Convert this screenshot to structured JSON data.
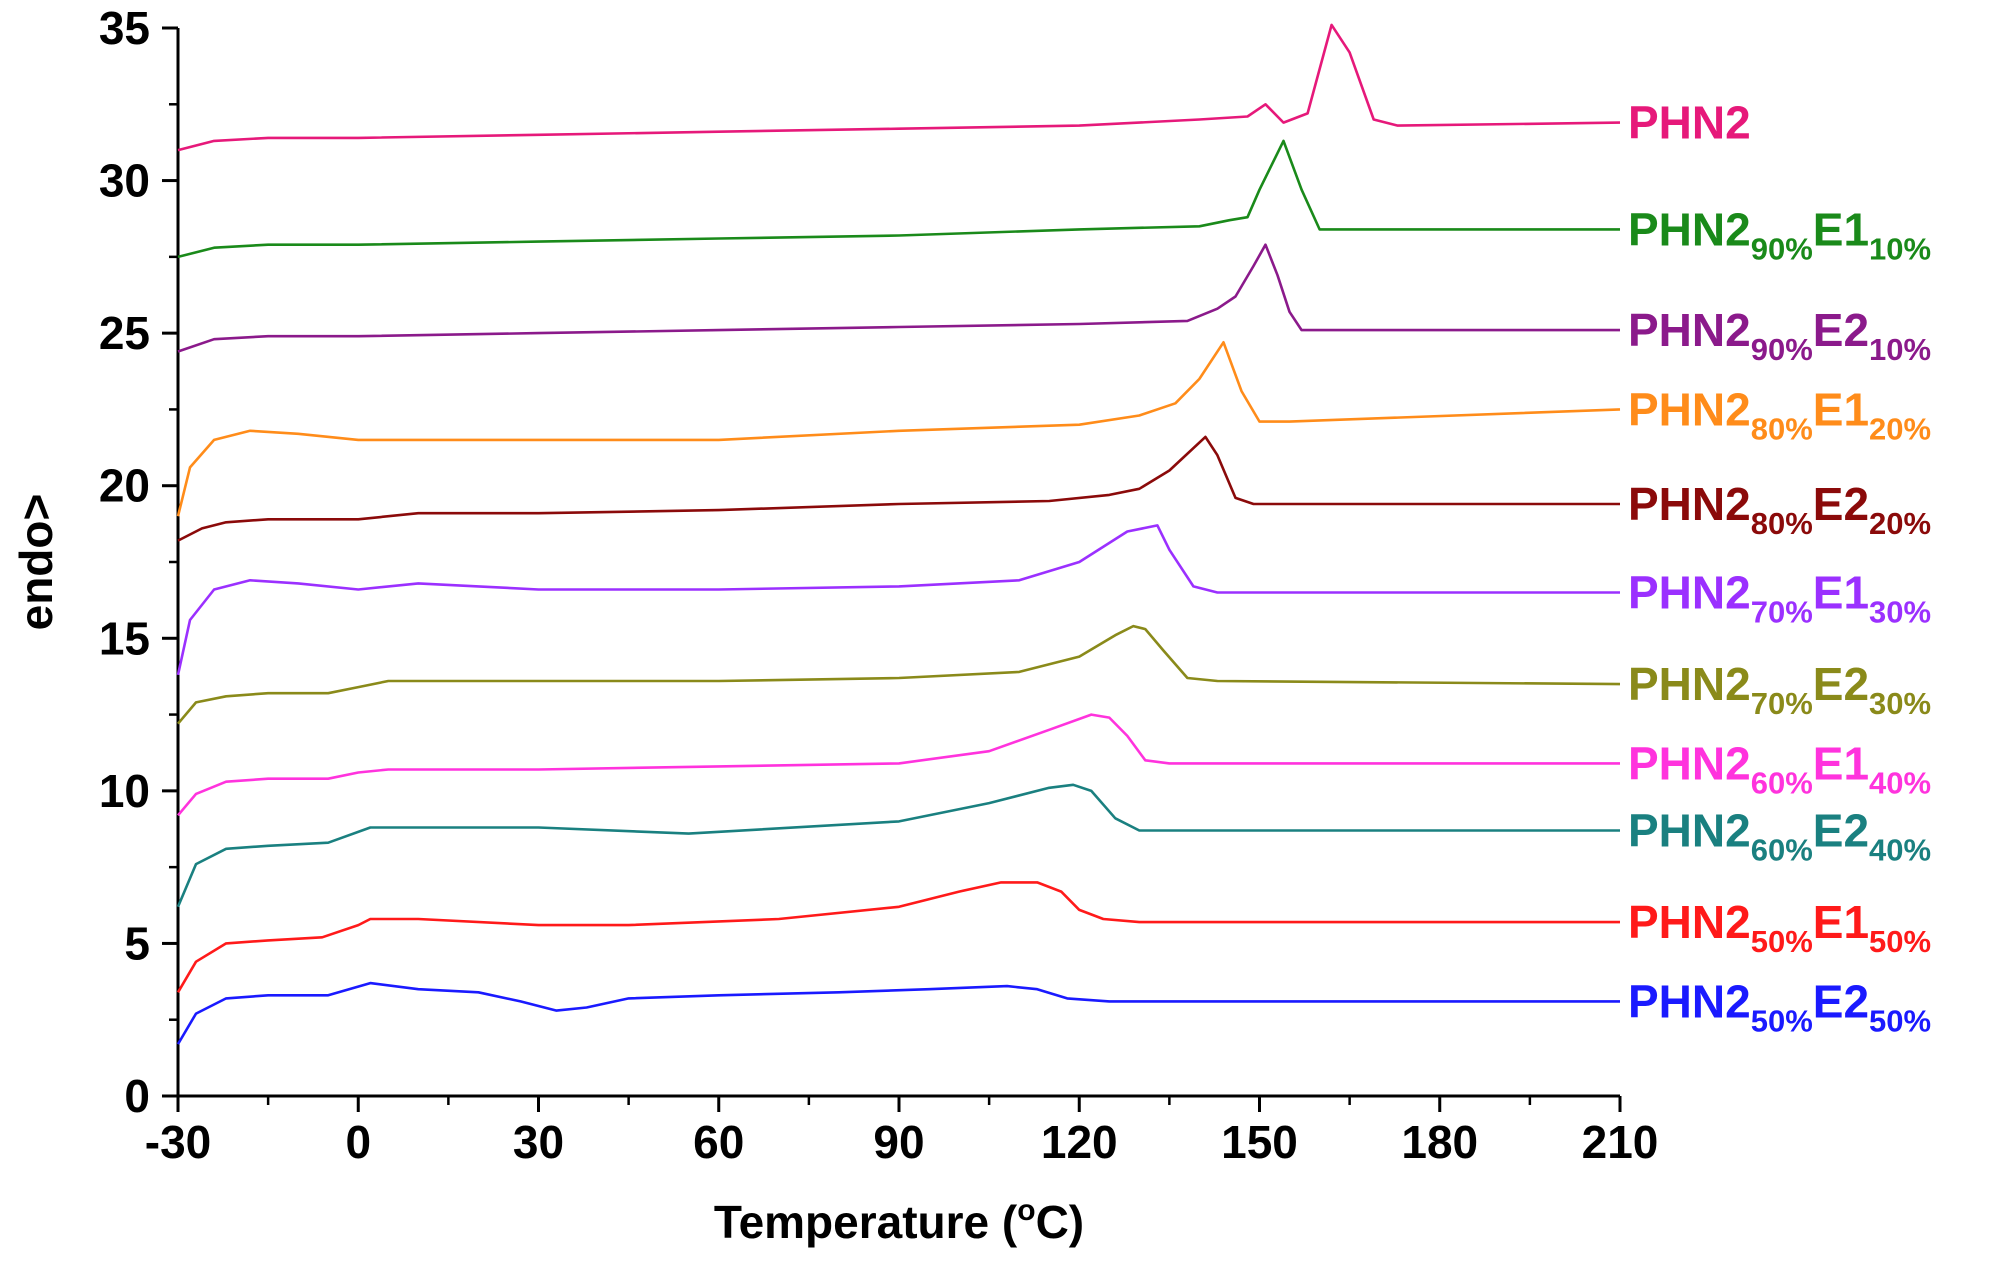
{
  "chart_data": {
    "type": "line",
    "title": "",
    "xlabel": "Temperature (",
    "xlabel_degree": "o",
    "xlabel_unit": "C)",
    "ylabel": "endo>",
    "xlim": [
      -30,
      210
    ],
    "ylim": [
      0,
      35
    ],
    "xticks": [
      -30,
      0,
      30,
      60,
      90,
      120,
      150,
      180,
      210
    ],
    "yticks": [
      0,
      5,
      10,
      15,
      20,
      25,
      30,
      35
    ],
    "grid": false,
    "series": [
      {
        "id": "phn2",
        "label": {
          "base": "PHN2",
          "parts": []
        },
        "color": "#e6197a",
        "x": [
          -30,
          -24,
          -15,
          0,
          30,
          60,
          90,
          120,
          140,
          148,
          151,
          154,
          158,
          162,
          165,
          169,
          173,
          210
        ],
        "y": [
          31.0,
          31.3,
          31.4,
          31.4,
          31.5,
          31.6,
          31.7,
          31.8,
          32.0,
          32.1,
          32.5,
          31.9,
          32.2,
          35.1,
          34.2,
          32.0,
          31.8,
          31.9
        ]
      },
      {
        "id": "phn2-90-e1-10",
        "label": {
          "base": "PHN2",
          "parts": [
            {
              "sub": "90%",
              "text": "E1"
            },
            {
              "sub": "10%",
              "text": ""
            }
          ]
        },
        "color": "#1a8a1a",
        "x": [
          -30,
          -24,
          -15,
          0,
          30,
          60,
          90,
          120,
          140,
          145,
          148,
          150,
          154,
          157,
          160,
          210
        ],
        "y": [
          27.5,
          27.8,
          27.9,
          27.9,
          28.0,
          28.1,
          28.2,
          28.4,
          28.5,
          28.7,
          28.8,
          29.7,
          31.3,
          29.7,
          28.4,
          28.4
        ]
      },
      {
        "id": "phn2-90-e2-10",
        "label": {
          "base": "PHN2",
          "parts": [
            {
              "sub": "90%",
              "text": "E2"
            },
            {
              "sub": "10%",
              "text": ""
            }
          ]
        },
        "color": "#8b1a8b",
        "x": [
          -30,
          -24,
          -15,
          0,
          30,
          60,
          90,
          120,
          138,
          143,
          146,
          149,
          151,
          153,
          155,
          157,
          160,
          210
        ],
        "y": [
          24.4,
          24.8,
          24.9,
          24.9,
          25.0,
          25.1,
          25.2,
          25.3,
          25.4,
          25.8,
          26.2,
          27.2,
          27.9,
          26.9,
          25.7,
          25.1,
          25.1,
          25.1
        ]
      },
      {
        "id": "phn2-80-e1-20",
        "label": {
          "base": "PHN2",
          "parts": [
            {
              "sub": "80%",
              "text": "E1"
            },
            {
              "sub": "20%",
              "text": ""
            }
          ]
        },
        "color": "#ff8c1a",
        "x": [
          -30,
          -28,
          -24,
          -18,
          -10,
          0,
          30,
          60,
          90,
          120,
          130,
          136,
          140,
          144,
          147,
          150,
          155,
          210
        ],
        "y": [
          19.0,
          20.6,
          21.5,
          21.8,
          21.7,
          21.5,
          21.5,
          21.5,
          21.8,
          22.0,
          22.3,
          22.7,
          23.5,
          24.7,
          23.1,
          22.1,
          22.1,
          22.5
        ]
      },
      {
        "id": "phn2-80-e2-20",
        "label": {
          "base": "PHN2",
          "parts": [
            {
              "sub": "80%",
              "text": "E2"
            },
            {
              "sub": "20%",
              "text": ""
            }
          ]
        },
        "color": "#8b0a0a",
        "x": [
          -30,
          -26,
          -22,
          -15,
          0,
          10,
          30,
          60,
          90,
          115,
          125,
          130,
          135,
          141,
          143,
          146,
          149,
          210
        ],
        "y": [
          18.2,
          18.6,
          18.8,
          18.9,
          18.9,
          19.1,
          19.1,
          19.2,
          19.4,
          19.5,
          19.7,
          19.9,
          20.5,
          21.6,
          21.0,
          19.6,
          19.4,
          19.4
        ]
      },
      {
        "id": "phn2-70-e1-30",
        "label": {
          "base": "PHN2",
          "parts": [
            {
              "sub": "70%",
              "text": "E1"
            },
            {
              "sub": "30%",
              "text": ""
            }
          ]
        },
        "color": "#9b30ff",
        "x": [
          -30,
          -28,
          -24,
          -18,
          -10,
          0,
          10,
          20,
          30,
          60,
          90,
          110,
          120,
          128,
          133,
          135,
          139,
          143,
          210
        ],
        "y": [
          13.8,
          15.6,
          16.6,
          16.9,
          16.8,
          16.6,
          16.8,
          16.7,
          16.6,
          16.6,
          16.7,
          16.9,
          17.5,
          18.5,
          18.7,
          17.9,
          16.7,
          16.5,
          16.5
        ]
      },
      {
        "id": "phn2-70-e2-30",
        "label": {
          "base": "PHN2",
          "parts": [
            {
              "sub": "70%",
              "text": "E2"
            },
            {
              "sub": "30%",
              "text": ""
            }
          ]
        },
        "color": "#8a8a1a",
        "x": [
          -30,
          -27,
          -22,
          -15,
          -5,
          0,
          5,
          30,
          60,
          90,
          110,
          120,
          126,
          129,
          131,
          134,
          138,
          143,
          210
        ],
        "y": [
          12.2,
          12.9,
          13.1,
          13.2,
          13.2,
          13.4,
          13.6,
          13.6,
          13.6,
          13.7,
          13.9,
          14.4,
          15.1,
          15.4,
          15.3,
          14.6,
          13.7,
          13.6,
          13.5
        ]
      },
      {
        "id": "phn2-60-e1-40",
        "label": {
          "base": "PHN2",
          "parts": [
            {
              "sub": "60%",
              "text": "E1"
            },
            {
              "sub": "40%",
              "text": ""
            }
          ]
        },
        "color": "#ff33dd",
        "x": [
          -30,
          -27,
          -22,
          -15,
          -5,
          0,
          5,
          30,
          60,
          90,
          105,
          115,
          122,
          125,
          128,
          131,
          135,
          210
        ],
        "y": [
          9.2,
          9.9,
          10.3,
          10.4,
          10.4,
          10.6,
          10.7,
          10.7,
          10.8,
          10.9,
          11.3,
          12.0,
          12.5,
          12.4,
          11.8,
          11.0,
          10.9,
          10.9
        ]
      },
      {
        "id": "phn2-60-e2-40",
        "label": {
          "base": "PHN2",
          "parts": [
            {
              "sub": "60%",
              "text": "E2"
            },
            {
              "sub": "40%",
              "text": ""
            }
          ]
        },
        "color": "#1a8080",
        "x": [
          -30,
          -27,
          -22,
          -15,
          -5,
          2,
          10,
          30,
          55,
          90,
          105,
          115,
          119,
          122,
          126,
          130,
          210
        ],
        "y": [
          6.2,
          7.6,
          8.1,
          8.2,
          8.3,
          8.8,
          8.8,
          8.8,
          8.6,
          9.0,
          9.6,
          10.1,
          10.2,
          10.0,
          9.1,
          8.7,
          8.7
        ]
      },
      {
        "id": "phn2-50-e1-50",
        "label": {
          "base": "PHN2",
          "parts": [
            {
              "sub": "50%",
              "text": "E1"
            },
            {
              "sub": "50%",
              "text": ""
            }
          ]
        },
        "color": "#ff1a1a",
        "x": [
          -30,
          -27,
          -22,
          -15,
          -6,
          0,
          2,
          10,
          30,
          45,
          70,
          90,
          100,
          107,
          113,
          117,
          120,
          124,
          130,
          210
        ],
        "y": [
          3.4,
          4.4,
          5.0,
          5.1,
          5.2,
          5.6,
          5.8,
          5.8,
          5.6,
          5.6,
          5.8,
          6.2,
          6.7,
          7.0,
          7.0,
          6.7,
          6.1,
          5.8,
          5.7,
          5.7
        ]
      },
      {
        "id": "phn2-50-e2-50",
        "label": {
          "base": "PHN2",
          "parts": [
            {
              "sub": "50%",
              "text": "E2"
            },
            {
              "sub": "50%",
              "text": ""
            }
          ]
        },
        "color": "#1a1aff",
        "x": [
          -30,
          -27,
          -22,
          -15,
          -5,
          2,
          10,
          20,
          27,
          33,
          38,
          45,
          60,
          80,
          95,
          108,
          113,
          118,
          125,
          210
        ],
        "y": [
          1.7,
          2.7,
          3.2,
          3.3,
          3.3,
          3.7,
          3.5,
          3.4,
          3.1,
          2.8,
          2.9,
          3.2,
          3.3,
          3.4,
          3.5,
          3.6,
          3.5,
          3.2,
          3.1,
          3.1
        ]
      }
    ]
  }
}
